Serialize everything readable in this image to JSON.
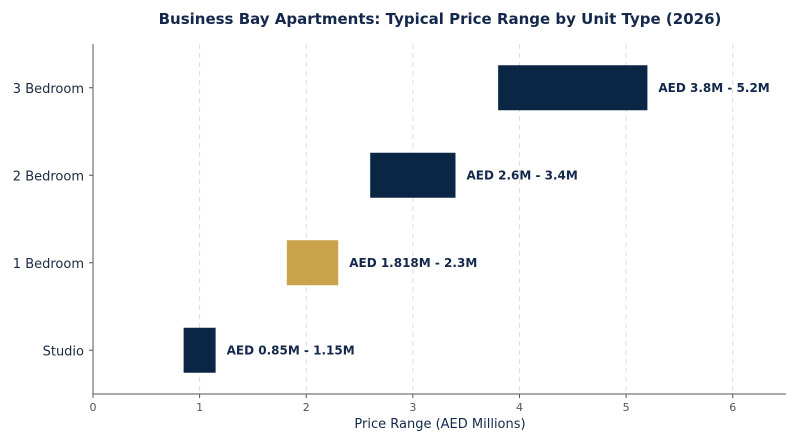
{
  "chart_data": {
    "type": "bar",
    "orientation": "horizontal-range",
    "title": "Business Bay Apartments: Typical Price Range by Unit Type (2026)",
    "xlabel": "Price Range (AED Millions)",
    "ylabel": "",
    "xlim": [
      0,
      6.5
    ],
    "xticks": [
      0,
      1,
      2,
      3,
      4,
      5,
      6
    ],
    "grid": "x-dashed",
    "categories": [
      "Studio",
      "1 Bedroom",
      "2 Bedroom",
      "3 Bedroom"
    ],
    "ranges": [
      {
        "category": "Studio",
        "low": 0.85,
        "high": 1.15,
        "label": "AED 0.85M - 1.15M",
        "color": "#0b2545"
      },
      {
        "category": "1 Bedroom",
        "low": 1.818,
        "high": 2.3,
        "label": "AED 1.818M - 2.3M",
        "color": "#c9a24b"
      },
      {
        "category": "2 Bedroom",
        "low": 2.6,
        "high": 3.4,
        "label": "AED 2.6M - 3.4M",
        "color": "#0b2545"
      },
      {
        "category": "3 Bedroom",
        "low": 3.8,
        "high": 5.2,
        "label": "AED 3.8M - 5.2M",
        "color": "#0b2545"
      }
    ]
  }
}
